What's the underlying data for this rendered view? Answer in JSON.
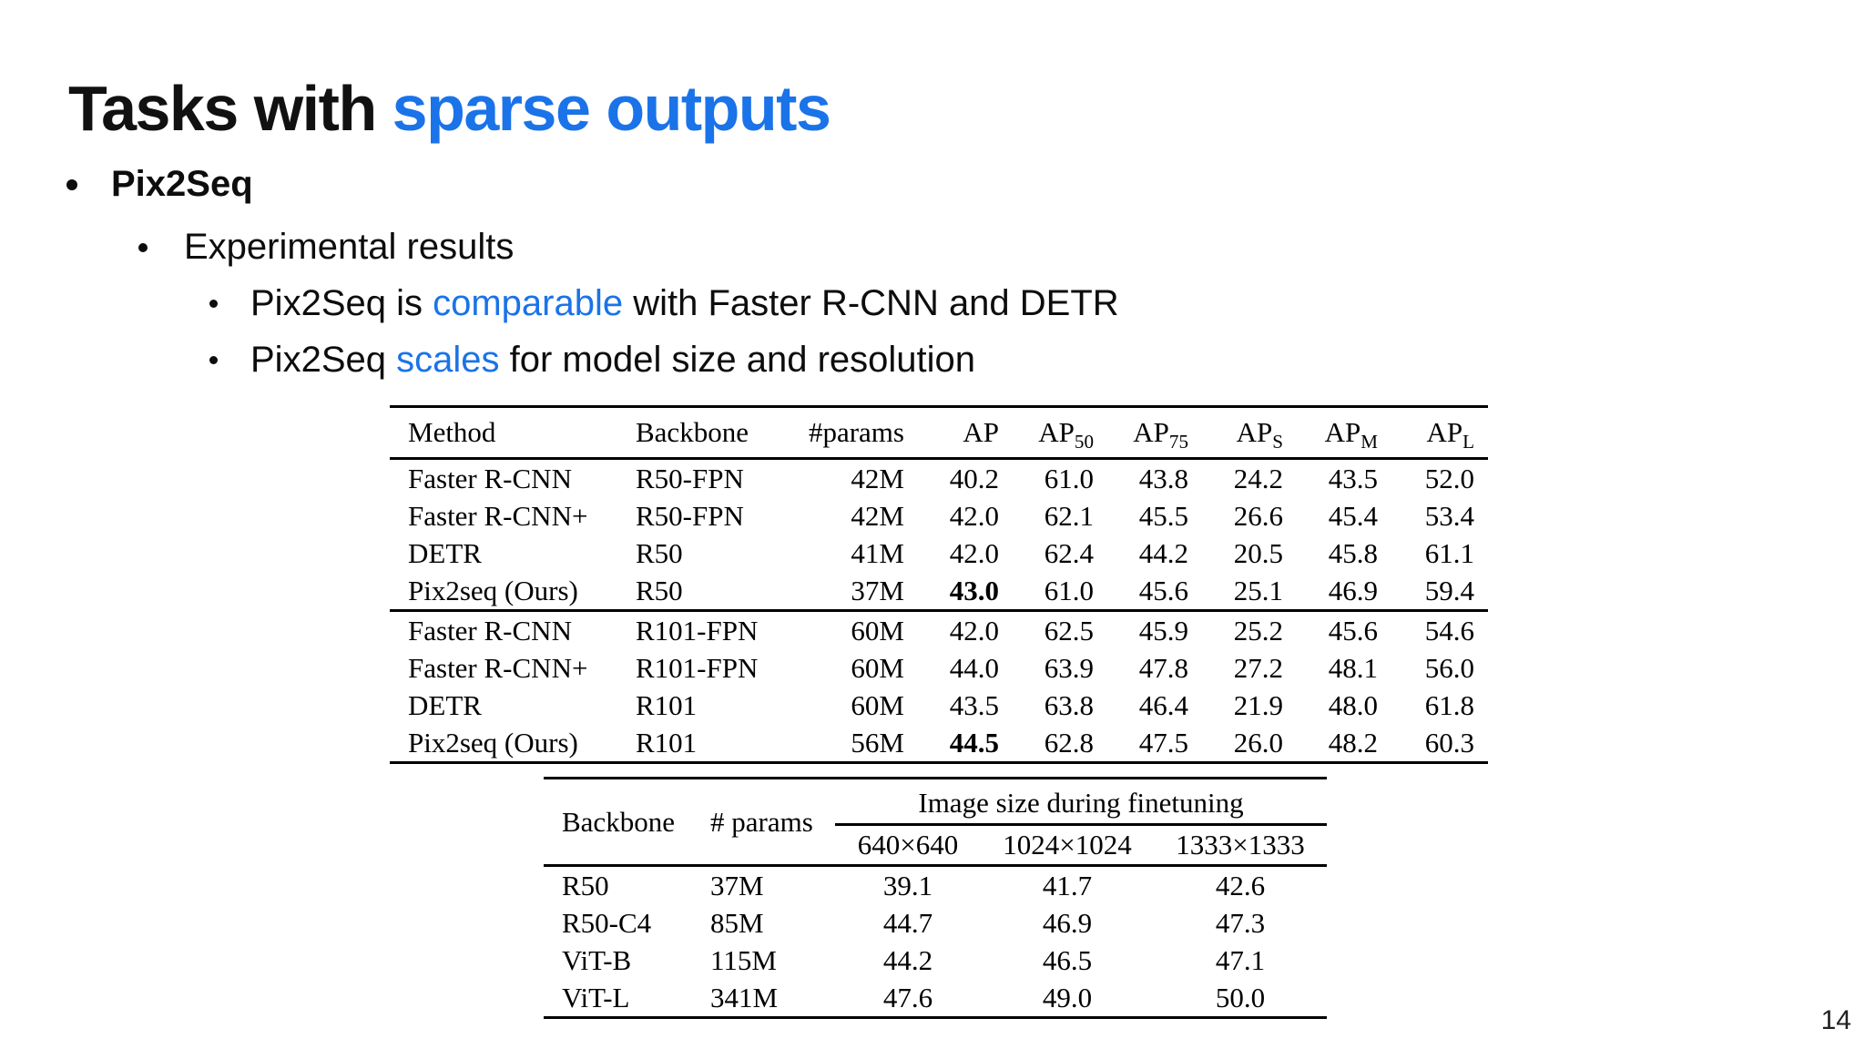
{
  "accent_blue": "#1a73e8",
  "title": {
    "prefix": "Tasks with ",
    "highlight": "sparse outputs"
  },
  "bullets": {
    "l1": "Pix2Seq",
    "l2": "Experimental results",
    "l3a": {
      "pre": "Pix2Seq is ",
      "link": "comparable",
      "post": " with Faster R-CNN and DETR"
    },
    "l3b": {
      "pre": "Pix2Seq ",
      "link": "scales",
      "post": " for model size and resolution"
    }
  },
  "table1": {
    "headers": [
      {
        "t": "Method"
      },
      {
        "t": "Backbone"
      },
      {
        "t": "#params"
      },
      {
        "t": "AP"
      },
      {
        "t": "AP",
        "sub": "50"
      },
      {
        "t": "AP",
        "sub": "75"
      },
      {
        "t": "AP",
        "sub": "S"
      },
      {
        "t": "AP",
        "sub": "M"
      },
      {
        "t": "AP",
        "sub": "L"
      }
    ],
    "groups": [
      {
        "rows": [
          {
            "cells": [
              "Faster R-CNN",
              "R50-FPN",
              "42M",
              "40.2",
              "61.0",
              "43.8",
              "24.2",
              "43.5",
              "52.0"
            ],
            "bold": []
          },
          {
            "cells": [
              "Faster R-CNN+",
              "R50-FPN",
              "42M",
              "42.0",
              "62.1",
              "45.5",
              "26.6",
              "45.4",
              "53.4"
            ],
            "bold": []
          },
          {
            "cells": [
              "DETR",
              "R50",
              "41M",
              "42.0",
              "62.4",
              "44.2",
              "20.5",
              "45.8",
              "61.1"
            ],
            "bold": []
          },
          {
            "cells": [
              "Pix2seq (Ours)",
              "R50",
              "37M",
              "43.0",
              "61.0",
              "45.6",
              "25.1",
              "46.9",
              "59.4"
            ],
            "bold": [
              3
            ]
          }
        ]
      },
      {
        "rows": [
          {
            "cells": [
              "Faster R-CNN",
              "R101-FPN",
              "60M",
              "42.0",
              "62.5",
              "45.9",
              "25.2",
              "45.6",
              "54.6"
            ],
            "bold": []
          },
          {
            "cells": [
              "Faster R-CNN+",
              "R101-FPN",
              "60M",
              "44.0",
              "63.9",
              "47.8",
              "27.2",
              "48.1",
              "56.0"
            ],
            "bold": []
          },
          {
            "cells": [
              "DETR",
              "R101",
              "60M",
              "43.5",
              "63.8",
              "46.4",
              "21.9",
              "48.0",
              "61.8"
            ],
            "bold": []
          },
          {
            "cells": [
              "Pix2seq (Ours)",
              "R101",
              "56M",
              "44.5",
              "62.8",
              "47.5",
              "26.0",
              "48.2",
              "60.3"
            ],
            "bold": [
              3
            ]
          }
        ]
      }
    ]
  },
  "table2": {
    "backbone_header": "Backbone",
    "params_header": "# params",
    "span_header": "Image size during finetuning",
    "size_headers": [
      "640×640",
      "1024×1024",
      "1333×1333"
    ],
    "rows": [
      [
        "R50",
        "37M",
        "39.1",
        "41.7",
        "42.6"
      ],
      [
        "R50-C4",
        "85M",
        "44.7",
        "46.9",
        "47.3"
      ],
      [
        "ViT-B",
        "115M",
        "44.2",
        "46.5",
        "47.1"
      ],
      [
        "ViT-L",
        "341M",
        "47.6",
        "49.0",
        "50.0"
      ]
    ]
  },
  "page_number": "14"
}
